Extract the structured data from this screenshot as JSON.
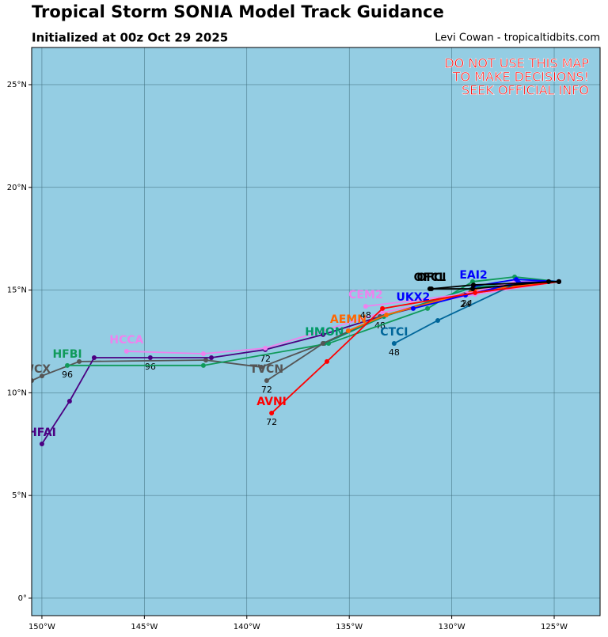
{
  "chart_data": {
    "type": "track",
    "title": "Tropical Storm SONIA Model Track Guidance",
    "subtitle": "Initialized at 00z Oct 29 2025",
    "credit": "Levi Cowan - tropicaltidbits.com",
    "warning": [
      "DO NOT USE THIS MAP",
      "TO MAKE DECISIONS!",
      "SEEK OFFICIAL INFO"
    ],
    "xlim": [
      -150.5,
      -122.76
    ],
    "ylim": [
      -0.85,
      26.81
    ],
    "xticks": [
      {
        "value": -150,
        "label": "150°W"
      },
      {
        "value": -145,
        "label": "145°W"
      },
      {
        "value": -140,
        "label": "140°W"
      },
      {
        "value": -135,
        "label": "135°W"
      },
      {
        "value": -130,
        "label": "130°W"
      },
      {
        "value": -125,
        "label": "125°W"
      }
    ],
    "yticks": [
      {
        "value": 0,
        "label": "0°"
      },
      {
        "value": 5,
        "label": "5°N"
      },
      {
        "value": 10,
        "label": "10°N"
      },
      {
        "value": 15,
        "label": "15°N"
      },
      {
        "value": 20,
        "label": "20°N"
      },
      {
        "value": 25,
        "label": "25°N"
      }
    ],
    "grid": true,
    "background": "#94cde3",
    "series": [
      {
        "name": "HWCX",
        "color": "#555555",
        "x": [
          -124.77,
          -129.25,
          -133.5,
          -136.28,
          -139.3,
          -142.0,
          -148.18,
          -150.0,
          -150.5
        ],
        "values": [
          15.41,
          14.79,
          13.71,
          12.4,
          11.25,
          11.59,
          11.52,
          10.82,
          10.59
        ],
        "hours": [
          null,
          null,
          null,
          null,
          null,
          null,
          null,
          null,
          null
        ]
      },
      {
        "name": "HFAI",
        "color": "#4b0082",
        "x": [
          -124.77,
          -126.66,
          -129.25,
          -133.5,
          -136.28,
          -139.1,
          -141.73,
          -144.71,
          -147.45,
          -148.65,
          -150.0
        ],
        "values": [
          15.41,
          15.29,
          14.79,
          13.71,
          12.83,
          12.1,
          11.71,
          11.71,
          11.71,
          9.59,
          7.51
        ],
        "hours": [
          null,
          null,
          24,
          48,
          null,
          72,
          null,
          96,
          null,
          null,
          null
        ]
      },
      {
        "name": "HFBI",
        "color": "#109a5a",
        "x": [
          -124.77,
          -126.93,
          -128.98,
          -131.18,
          -136.01,
          -142.12,
          -148.76
        ],
        "values": [
          15.41,
          15.64,
          15.41,
          14.1,
          12.4,
          11.33,
          11.33
        ],
        "hours": [
          null,
          null,
          null,
          null,
          null,
          null,
          96
        ]
      },
      {
        "name": "HCCA",
        "color": "#ee82ee",
        "x": [
          -124.77,
          -128.86,
          -133.38,
          -139.1,
          -142.12,
          -145.87
        ],
        "values": [
          15.41,
          14.79,
          13.91,
          12.17,
          11.9,
          12.02
        ],
        "hours": [
          null,
          null,
          null,
          null,
          null,
          null
        ]
      },
      {
        "name": "HMON",
        "color": "#009966",
        "x": [
          -124.77,
          -128.94,
          -133.31,
          -136.21
        ],
        "values": [
          15.41,
          15.14,
          13.71,
          12.4
        ],
        "hours": [
          null,
          null,
          null,
          null
        ]
      },
      {
        "name": "TVCN",
        "color": "#555555",
        "x": [
          -125.27,
          -129.06,
          -133.5,
          -136.28,
          -139.03
        ],
        "values": [
          15.41,
          14.95,
          13.71,
          12.4,
          10.59
        ],
        "hours": [
          null,
          null,
          null,
          null,
          72
        ]
      },
      {
        "name": "AEMN",
        "color": "#ff6600",
        "x": [
          -124.77,
          -128.86,
          -133.19,
          -135.05
        ],
        "values": [
          15.41,
          14.98,
          13.79,
          13.02
        ],
        "hours": [
          null,
          null,
          null,
          null
        ]
      },
      {
        "name": "CEM2",
        "color": "#ee82ee",
        "x": [
          -124.77,
          -126.93,
          -129.25,
          -131.96,
          -134.2
        ],
        "values": [
          15.41,
          15.41,
          14.83,
          14.48,
          14.21
        ],
        "hours": [
          null,
          null,
          null,
          null,
          48
        ]
      },
      {
        "name": "CTCI",
        "color": "#00669a",
        "x": [
          -124.77,
          -126.74,
          -130.68,
          -132.81
        ],
        "values": [
          15.41,
          15.37,
          13.52,
          12.4
        ],
        "hours": [
          null,
          null,
          null,
          48
        ]
      },
      {
        "name": "UKX2",
        "color": "#0000ff",
        "x": [
          -124.77,
          -126.74,
          -129.33,
          -131.88
        ],
        "values": [
          15.41,
          15.37,
          14.75,
          14.1
        ],
        "hours": [
          null,
          null,
          24,
          null
        ]
      },
      {
        "name": "EAI2",
        "color": "#0000ff",
        "x": [
          -124.77,
          -126.85,
          -128.94
        ],
        "values": [
          15.41,
          15.52,
          15.18
        ],
        "hours": [
          null,
          null,
          null
        ]
      },
      {
        "name": "AVNI",
        "color": "#ff0000",
        "x": [
          -124.77,
          -128.86,
          -133.38,
          -136.09,
          -138.79
        ],
        "values": [
          15.41,
          14.87,
          14.1,
          11.52,
          9.01
        ],
        "hours": [
          null,
          null,
          null,
          null,
          72
        ]
      },
      {
        "name": "OFCI",
        "color": "#000000",
        "x": [
          -124.77,
          -128.94,
          -130.99
        ],
        "values": [
          15.41,
          15.25,
          15.06
        ],
        "hours": [
          null,
          null,
          null
        ]
      },
      {
        "name": "OFCL",
        "color": "#000000",
        "x": [
          -124.77,
          -125.27,
          -128.98,
          -131.07
        ],
        "values": [
          15.41,
          15.41,
          15.06,
          15.06
        ],
        "hours": [
          null,
          null,
          null,
          null
        ]
      }
    ]
  }
}
